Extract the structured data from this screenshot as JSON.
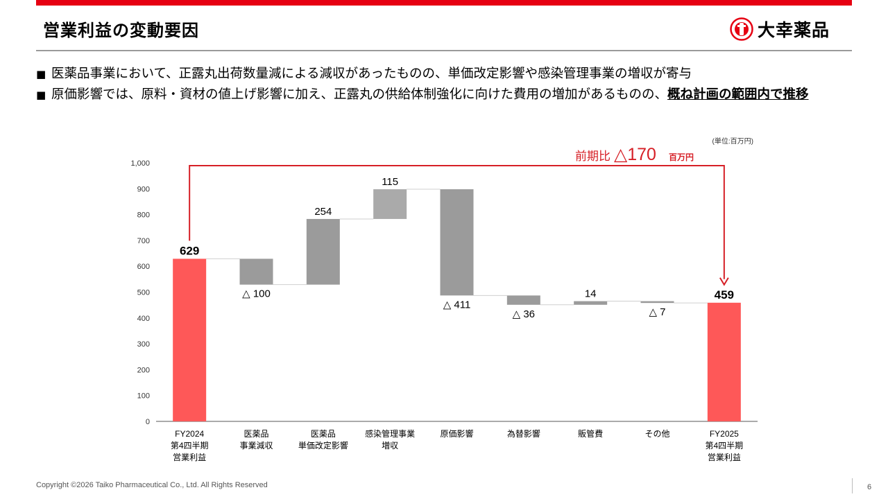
{
  "header": {
    "title": "営業利益の変動要因",
    "company_logo_text": "大幸薬品",
    "accent_color": "#e60012"
  },
  "bullets": [
    {
      "text": "医薬品事業において、正露丸出荷数量減による減収があったものの、単価改定影響や感染管理事業の増収が寄与",
      "emphasis": ""
    },
    {
      "text": "原価影響では、原料・資材の値上げ影響に加え、正露丸の供給体制強化に向けた費用の増加があるものの、",
      "emphasis": "概ね計画の範囲内で推移"
    }
  ],
  "chart_data": {
    "type": "waterfall",
    "unit_note": "(単位:百万円)",
    "ylim": [
      0,
      1000
    ],
    "yticks": [
      "0",
      "100",
      "200",
      "300",
      "400",
      "500",
      "600",
      "700",
      "800",
      "900",
      "1,000"
    ],
    "categories": [
      [
        "FY2024",
        "第4四半期",
        "営業利益"
      ],
      [
        "医薬品",
        "事業減収"
      ],
      [
        "医薬品",
        "単価改定影響"
      ],
      [
        "感染管理事業",
        "増収"
      ],
      [
        "原価影響"
      ],
      [
        "為替影響"
      ],
      [
        "販管費"
      ],
      [
        "その他"
      ],
      [
        "FY2025",
        "第4四半期",
        "営業利益"
      ]
    ],
    "values": [
      629,
      -100,
      254,
      115,
      -411,
      -36,
      14,
      -7,
      459
    ],
    "kinds": [
      "total",
      "delta",
      "delta",
      "delta",
      "delta",
      "delta",
      "delta",
      "delta",
      "total"
    ],
    "data_labels": [
      "629",
      "△ 100",
      "254",
      "115",
      "△ 411",
      "△ 36",
      "14",
      "△ 7",
      "459"
    ],
    "comparison": {
      "prefix": "前期比",
      "value": "△170",
      "unit": "百万円"
    },
    "colors": {
      "total": "#fe5858",
      "negative": "#9b9b9b",
      "positive_dark": "#9b9b9b",
      "positive_light": "#aaaaaa",
      "bracket": "#d61f26"
    }
  },
  "footer": {
    "copyright": "Copyright ©2026   Taiko Pharmaceutical Co., Ltd. All Rights Reserved",
    "page_number": "6"
  }
}
